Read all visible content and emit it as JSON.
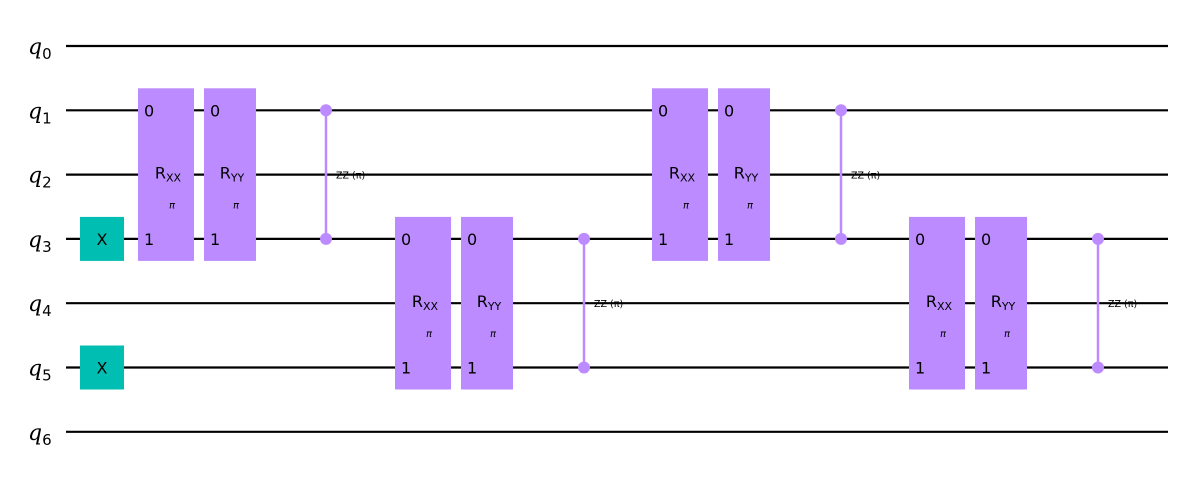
{
  "circuit": {
    "qubits": [
      {
        "base": "q",
        "index": "0"
      },
      {
        "base": "q",
        "index": "1"
      },
      {
        "base": "q",
        "index": "2"
      },
      {
        "base": "q",
        "index": "3"
      },
      {
        "base": "q",
        "index": "4"
      },
      {
        "base": "q",
        "index": "5"
      },
      {
        "base": "q",
        "index": "6"
      }
    ],
    "colors": {
      "x_gate": "#00bfb2",
      "two_qubit_gate": "#bb8bff",
      "wire": "#000000"
    },
    "x_gates": [
      {
        "qubit": 3,
        "label": "X"
      },
      {
        "qubit": 5,
        "label": "X"
      }
    ],
    "rotation_gates": [
      {
        "name": "R",
        "sub": "XX",
        "param": "π",
        "qubits": [
          1,
          3
        ],
        "pins": [
          "0",
          "1"
        ]
      },
      {
        "name": "R",
        "sub": "YY",
        "param": "π",
        "qubits": [
          1,
          3
        ],
        "pins": [
          "0",
          "1"
        ]
      },
      {
        "name": "R",
        "sub": "XX",
        "param": "π",
        "qubits": [
          3,
          5
        ],
        "pins": [
          "0",
          "1"
        ]
      },
      {
        "name": "R",
        "sub": "YY",
        "param": "π",
        "qubits": [
          3,
          5
        ],
        "pins": [
          "0",
          "1"
        ]
      },
      {
        "name": "R",
        "sub": "XX",
        "param": "π",
        "qubits": [
          1,
          3
        ],
        "pins": [
          "0",
          "1"
        ]
      },
      {
        "name": "R",
        "sub": "YY",
        "param": "π",
        "qubits": [
          1,
          3
        ],
        "pins": [
          "0",
          "1"
        ]
      },
      {
        "name": "R",
        "sub": "XX",
        "param": "π",
        "qubits": [
          3,
          5
        ],
        "pins": [
          "0",
          "1"
        ]
      },
      {
        "name": "R",
        "sub": "YY",
        "param": "π",
        "qubits": [
          3,
          5
        ],
        "pins": [
          "0",
          "1"
        ]
      }
    ],
    "zz_gates": [
      {
        "qubits": [
          1,
          3
        ],
        "label": "ZZ (π)"
      },
      {
        "qubits": [
          3,
          5
        ],
        "label": "ZZ (π)"
      },
      {
        "qubits": [
          1,
          3
        ],
        "label": "ZZ (π)"
      },
      {
        "qubits": [
          3,
          5
        ],
        "label": "ZZ (π)"
      }
    ]
  }
}
